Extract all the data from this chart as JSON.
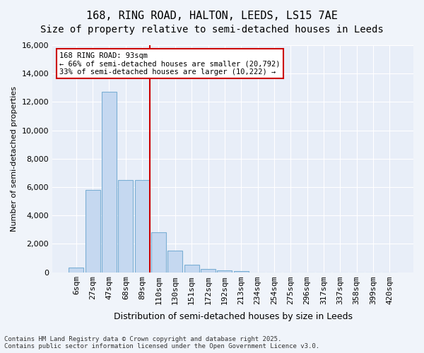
{
  "title1": "168, RING ROAD, HALTON, LEEDS, LS15 7AE",
  "title2": "Size of property relative to semi-detached houses in Leeds",
  "xlabel": "Distribution of semi-detached houses by size in Leeds",
  "ylabel": "Number of semi-detached properties",
  "categories": [
    "6sqm",
    "27sqm",
    "47sqm",
    "68sqm",
    "89sqm",
    "110sqm",
    "130sqm",
    "151sqm",
    "172sqm",
    "192sqm",
    "213sqm",
    "234sqm",
    "254sqm",
    "275sqm",
    "296sqm",
    "317sqm",
    "337sqm",
    "358sqm",
    "399sqm",
    "420sqm"
  ],
  "values": [
    300,
    5800,
    12700,
    6500,
    6500,
    2800,
    1500,
    500,
    250,
    150,
    100,
    0,
    0,
    0,
    0,
    0,
    0,
    0,
    0,
    0
  ],
  "bar_color": "#c5d8f0",
  "bar_edge_color": "#7bafd4",
  "vline_x": 4,
  "vline_color": "#cc0000",
  "annotation_title": "168 RING ROAD: 93sqm",
  "annotation_line1": "← 66% of semi-detached houses are smaller (20,792)",
  "annotation_line2": "33% of semi-detached houses are larger (10,222) →",
  "annotation_box_color": "#cc0000",
  "ylim": [
    0,
    16000
  ],
  "yticks": [
    0,
    2000,
    4000,
    6000,
    8000,
    10000,
    12000,
    14000,
    16000
  ],
  "background_color": "#e8eef8",
  "plot_bg_color": "#e8eef8",
  "footer1": "Contains HM Land Registry data © Crown copyright and database right 2025.",
  "footer2": "Contains public sector information licensed under the Open Government Licence v3.0.",
  "title_fontsize": 11,
  "subtitle_fontsize": 10
}
